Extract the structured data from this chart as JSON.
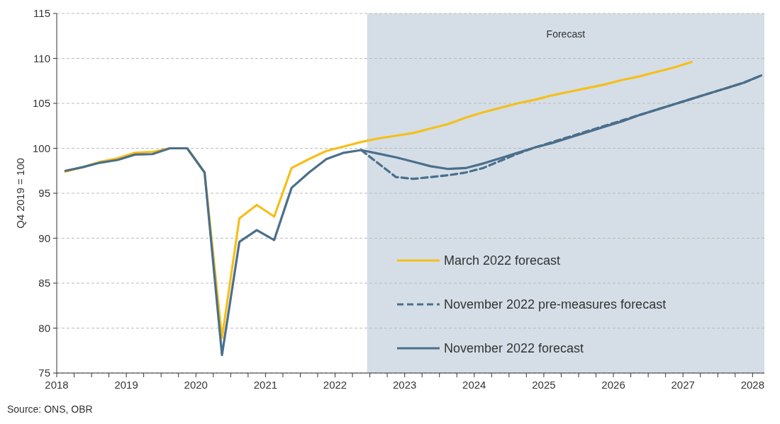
{
  "chart_data": {
    "type": "line",
    "ylabel": "Q4 2019 = 100",
    "x": [
      2018.125,
      2018.375,
      2018.625,
      2018.875,
      2019.125,
      2019.375,
      2019.625,
      2019.875,
      2020.125,
      2020.375,
      2020.625,
      2020.875,
      2021.125,
      2021.375,
      2021.625,
      2021.875,
      2022.125,
      2022.375,
      2022.625,
      2022.875,
      2023.125,
      2023.375,
      2023.625,
      2023.875,
      2024.125,
      2024.375,
      2024.625,
      2024.875,
      2025.125,
      2025.375,
      2025.625,
      2025.875,
      2026.125,
      2026.375,
      2026.625,
      2026.875,
      2027.125,
      2027.375,
      2027.625,
      2027.875,
      2028.125
    ],
    "series": [
      {
        "name": "March 2022 forecast",
        "color": "#f5bf1a",
        "line_style": "solid",
        "values": [
          97.4,
          97.9,
          98.5,
          98.9,
          99.5,
          99.6,
          100,
          100,
          97.3,
          78.9,
          92.2,
          93.7,
          92.4,
          97.8,
          98.8,
          99.7,
          100.2,
          100.7,
          101.1,
          101.4,
          101.7,
          102.2,
          102.7,
          103.4,
          104.0,
          104.5,
          105.0,
          105.4,
          105.9,
          106.3,
          106.7,
          107.1,
          107.6,
          108.0,
          108.5,
          109.0,
          109.6,
          null,
          null,
          null,
          null
        ]
      },
      {
        "name": "November 2022 pre-measures forecast",
        "color": "#4a6f8c",
        "line_style": "dashed",
        "values": [
          null,
          null,
          null,
          null,
          null,
          null,
          null,
          null,
          null,
          null,
          null,
          null,
          null,
          null,
          null,
          null,
          null,
          99.8,
          98.3,
          96.8,
          96.6,
          96.8,
          97.0,
          97.3,
          97.8,
          98.6,
          99.4,
          100.1,
          100.7,
          101.3,
          101.9,
          102.5,
          103.1,
          103.7,
          104.3,
          104.9,
          105.5,
          106.1,
          106.7,
          107.3,
          108.1
        ]
      },
      {
        "name": "November 2022 forecast",
        "color": "#4a6f8c",
        "line_style": "solid",
        "values": [
          97.5,
          97.9,
          98.4,
          98.7,
          99.3,
          99.35,
          100,
          100,
          97.3,
          77.0,
          89.6,
          90.9,
          89.8,
          95.6,
          97.3,
          98.8,
          99.5,
          99.8,
          99.4,
          99.0,
          98.5,
          98.0,
          97.7,
          97.8,
          98.3,
          98.9,
          99.5,
          100.1,
          100.6,
          101.2,
          101.8,
          102.4,
          103.0,
          103.7,
          104.3,
          104.9,
          105.5,
          106.1,
          106.7,
          107.3,
          108.1
        ]
      }
    ],
    "xlim": [
      2018,
      2028.17
    ],
    "xticks": [
      2018,
      {
        "value": 2018.25,
        "label": null
      },
      {
        "value": 2018.5,
        "label": null
      },
      {
        "value": 2018.75,
        "label": null
      },
      2019,
      {
        "value": 2019.25,
        "label": null
      },
      {
        "value": 2019.5,
        "label": null
      },
      {
        "value": 2019.75,
        "label": null
      },
      2020,
      {
        "value": 2020.25,
        "label": null
      },
      {
        "value": 2020.5,
        "label": null
      },
      {
        "value": 2020.75,
        "label": null
      },
      2021,
      {
        "value": 2021.25,
        "label": null
      },
      {
        "value": 2021.5,
        "label": null
      },
      {
        "value": 2021.75,
        "label": null
      },
      2022,
      {
        "value": 2022.25,
        "label": null
      },
      {
        "value": 2022.5,
        "label": null
      },
      {
        "value": 2022.75,
        "label": null
      },
      2023,
      {
        "value": 2023.25,
        "label": null
      },
      {
        "value": 2023.5,
        "label": null
      },
      {
        "value": 2023.75,
        "label": null
      },
      2024,
      {
        "value": 2024.25,
        "label": null
      },
      {
        "value": 2024.5,
        "label": null
      },
      {
        "value": 2024.75,
        "label": null
      },
      2025,
      {
        "value": 2025.25,
        "label": null
      },
      {
        "value": 2025.5,
        "label": null
      },
      {
        "value": 2025.75,
        "label": null
      },
      2026,
      {
        "value": 2026.25,
        "label": null
      },
      {
        "value": 2026.5,
        "label": null
      },
      {
        "value": 2026.75,
        "label": null
      },
      2027,
      {
        "value": 2027.25,
        "label": null
      },
      {
        "value": 2027.5,
        "label": null
      },
      {
        "value": 2027.75,
        "label": null
      },
      2028
    ],
    "ylim": [
      75,
      115
    ],
    "yticks": [
      75,
      80,
      85,
      90,
      95,
      100,
      105,
      110,
      115
    ],
    "grid": "y",
    "legend": "bottom right",
    "bands": [
      {
        "axis": "x",
        "from": 2022.46,
        "to": 2028.17,
        "label": "Forecast",
        "color": "#d5dee6"
      }
    ],
    "annotations": [
      "Source: ONS, OBR"
    ]
  }
}
